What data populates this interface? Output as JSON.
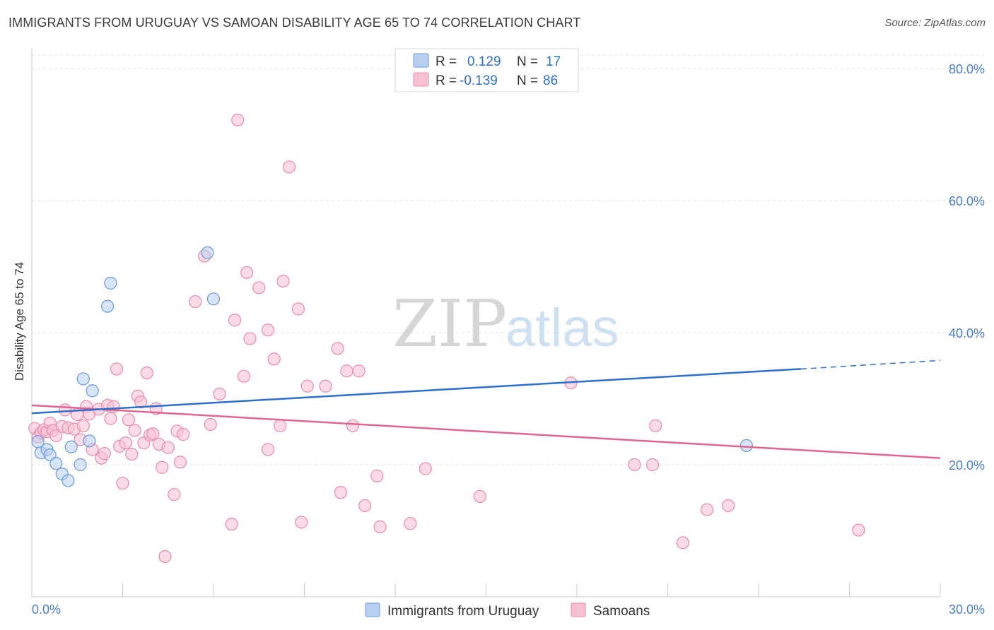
{
  "title": "IMMIGRANTS FROM URUGUAY VS SAMOAN DISABILITY AGE 65 TO 74 CORRELATION CHART",
  "source": "Source: ZipAtlas.com",
  "watermark": {
    "zip": "ZIP",
    "atlas": "atlas"
  },
  "colors": {
    "uruguay_fill": "#b8d0f0",
    "uruguay_stroke": "#6a9ad8",
    "uruguay_line": "#2d6fcc",
    "samoan_fill": "#f7c0d2",
    "samoan_stroke": "#e88aaa",
    "samoan_line": "#e06690",
    "axis_text": "#4a7fcc",
    "grid": "#dddddd"
  },
  "legend": {
    "rows": [
      {
        "r_label": "R =",
        "r_value": "0.129",
        "n_label": "N =",
        "n_value": "17"
      },
      {
        "r_label": "R =",
        "r_value": "-0.139",
        "n_label": "N =",
        "n_value": "86"
      }
    ]
  },
  "chart_data": {
    "type": "scatter",
    "title": "IMMIGRANTS FROM URUGUAY VS SAMOAN DISABILITY AGE 65 TO 74 CORRELATION CHART",
    "xlabel": "",
    "ylabel": "Disability Age 65 to 74",
    "xlim": [
      0,
      30
    ],
    "ylim": [
      0,
      80
    ],
    "x_tick_labels": [
      "0.0%",
      "30.0%"
    ],
    "y_ticks": [
      20,
      40,
      60,
      80
    ],
    "y_tick_labels": [
      "20.0%",
      "40.0%",
      "60.0%",
      "80.0%"
    ],
    "grid": true,
    "legend_position": "top-center",
    "series": [
      {
        "name": "Immigrants from Uruguay",
        "r": 0.129,
        "n": 17,
        "points": [
          [
            0.2,
            23.5
          ],
          [
            0.3,
            21.8
          ],
          [
            0.5,
            22.3
          ],
          [
            0.6,
            21.5
          ],
          [
            0.8,
            20.2
          ],
          [
            1.0,
            18.6
          ],
          [
            1.2,
            17.6
          ],
          [
            1.3,
            22.7
          ],
          [
            1.6,
            20.0
          ],
          [
            1.7,
            33.0
          ],
          [
            1.9,
            23.6
          ],
          [
            2.0,
            31.2
          ],
          [
            2.6,
            47.5
          ],
          [
            2.5,
            44.0
          ],
          [
            5.8,
            52.1
          ],
          [
            6.0,
            45.1
          ],
          [
            23.6,
            22.9
          ]
        ],
        "trend": {
          "x": [
            0,
            25.4
          ],
          "y": [
            27.8,
            34.5
          ]
        },
        "trend_dashed": {
          "x": [
            25.4,
            30
          ],
          "y": [
            34.5,
            35.8
          ]
        }
      },
      {
        "name": "Samoans",
        "r": -0.139,
        "n": 86,
        "points": [
          [
            0.1,
            25.5
          ],
          [
            0.2,
            24.2
          ],
          [
            0.3,
            24.8
          ],
          [
            0.4,
            25.3
          ],
          [
            0.5,
            25.0
          ],
          [
            0.6,
            26.3
          ],
          [
            0.7,
            25.2
          ],
          [
            0.8,
            24.4
          ],
          [
            1.0,
            25.8
          ],
          [
            1.1,
            28.3
          ],
          [
            1.2,
            25.6
          ],
          [
            1.4,
            25.4
          ],
          [
            1.5,
            27.6
          ],
          [
            1.6,
            23.8
          ],
          [
            1.7,
            25.9
          ],
          [
            1.8,
            28.8
          ],
          [
            1.9,
            27.7
          ],
          [
            2.0,
            22.3
          ],
          [
            2.2,
            28.4
          ],
          [
            2.3,
            21.0
          ],
          [
            2.4,
            21.7
          ],
          [
            2.5,
            29.0
          ],
          [
            2.6,
            27.0
          ],
          [
            2.7,
            28.8
          ],
          [
            2.8,
            34.5
          ],
          [
            2.9,
            22.8
          ],
          [
            3.0,
            17.2
          ],
          [
            3.1,
            23.3
          ],
          [
            3.2,
            26.8
          ],
          [
            3.3,
            21.6
          ],
          [
            3.4,
            25.2
          ],
          [
            3.5,
            30.4
          ],
          [
            3.6,
            29.5
          ],
          [
            3.7,
            23.3
          ],
          [
            3.8,
            33.9
          ],
          [
            3.9,
            24.5
          ],
          [
            4.0,
            24.7
          ],
          [
            4.1,
            28.5
          ],
          [
            4.2,
            23.1
          ],
          [
            4.3,
            19.6
          ],
          [
            4.5,
            22.6
          ],
          [
            4.7,
            15.5
          ],
          [
            4.8,
            25.1
          ],
          [
            4.9,
            20.4
          ],
          [
            5.0,
            24.6
          ],
          [
            5.4,
            44.7
          ],
          [
            5.7,
            51.6
          ],
          [
            5.9,
            26.1
          ],
          [
            6.2,
            30.7
          ],
          [
            6.6,
            11.0
          ],
          [
            6.7,
            41.9
          ],
          [
            6.8,
            72.2
          ],
          [
            7.0,
            33.4
          ],
          [
            7.1,
            49.1
          ],
          [
            7.2,
            39.1
          ],
          [
            7.5,
            46.8
          ],
          [
            7.8,
            22.3
          ],
          [
            7.8,
            40.4
          ],
          [
            8.0,
            36.0
          ],
          [
            8.2,
            25.9
          ],
          [
            8.3,
            47.8
          ],
          [
            8.5,
            65.1
          ],
          [
            8.8,
            43.6
          ],
          [
            8.9,
            11.3
          ],
          [
            9.1,
            31.9
          ],
          [
            9.7,
            31.9
          ],
          [
            10.1,
            37.6
          ],
          [
            10.2,
            15.8
          ],
          [
            10.4,
            34.2
          ],
          [
            10.6,
            25.9
          ],
          [
            10.8,
            34.2
          ],
          [
            11.0,
            13.8
          ],
          [
            11.4,
            18.3
          ],
          [
            11.5,
            10.6
          ],
          [
            12.5,
            11.1
          ],
          [
            13.0,
            19.4
          ],
          [
            14.8,
            15.2
          ],
          [
            17.8,
            32.4
          ],
          [
            19.9,
            20.0
          ],
          [
            20.5,
            20.0
          ],
          [
            20.6,
            25.9
          ],
          [
            21.5,
            8.2
          ],
          [
            22.3,
            13.2
          ],
          [
            23.0,
            13.8
          ],
          [
            27.3,
            10.1
          ],
          [
            4.4,
            6.1
          ]
        ],
        "trend": {
          "x": [
            0,
            30
          ],
          "y": [
            29.0,
            21.0
          ]
        }
      }
    ]
  }
}
